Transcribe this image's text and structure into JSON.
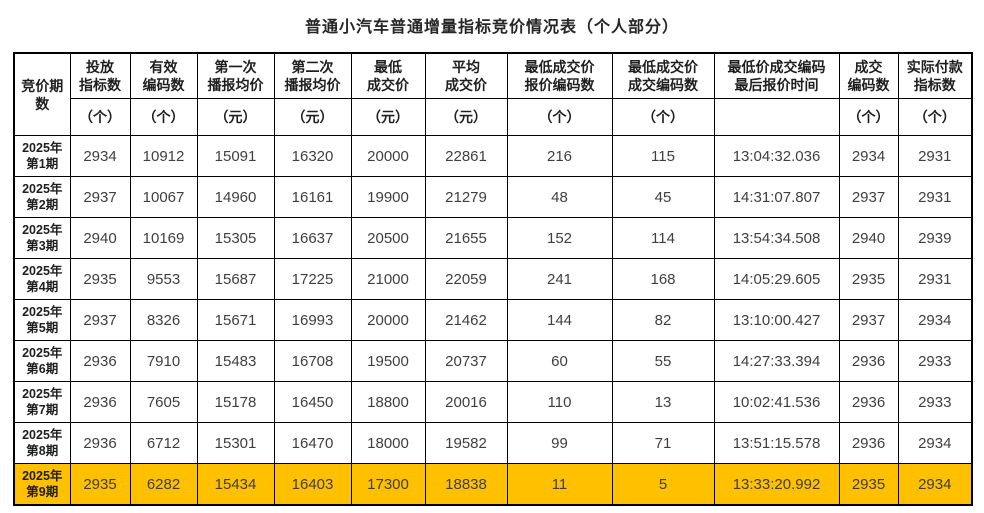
{
  "title": "普通小汽车普通增量指标竞价情况表（个人部分）",
  "colors": {
    "highlight_row": "#FFC000",
    "border": "#000000",
    "data_text": "#3F3F3F",
    "header_text": "#1F1F1F"
  },
  "chart_data": {
    "type": "table",
    "title": "普通小汽车普通增量指标竞价情况表（个人部分）",
    "period_header": "竞价期\n数",
    "columns": [
      {
        "name": "投放\n指标数",
        "unit": "（个）"
      },
      {
        "name": "有效\n编码数",
        "unit": "（个）"
      },
      {
        "name": "第一次\n播报均价",
        "unit": "（元）"
      },
      {
        "name": "第二次\n播报均价",
        "unit": "（元）"
      },
      {
        "name": "最低\n成交价",
        "unit": "（元）"
      },
      {
        "name": "平均\n成交价",
        "unit": "（元）"
      },
      {
        "name": "最低成交价\n报价编码数",
        "unit": "（个）"
      },
      {
        "name": "最低成交价\n成交编码数",
        "unit": "（个）"
      },
      {
        "name": "最低价成交编码\n最后报价时间",
        "unit": ""
      },
      {
        "name": "成交\n编码数",
        "unit": "（个）"
      },
      {
        "name": "实际付款\n指标数",
        "unit": "（个）"
      }
    ],
    "rows": [
      {
        "period": "2025年\n第1期",
        "highlight": false,
        "values": [
          "2934",
          "10912",
          "15091",
          "16320",
          "20000",
          "22861",
          "216",
          "115",
          "13:04:32.036",
          "2934",
          "2931"
        ]
      },
      {
        "period": "2025年\n第2期",
        "highlight": false,
        "values": [
          "2937",
          "10067",
          "14960",
          "16161",
          "19900",
          "21279",
          "48",
          "45",
          "14:31:07.807",
          "2937",
          "2931"
        ]
      },
      {
        "period": "2025年\n第3期",
        "highlight": false,
        "values": [
          "2940",
          "10169",
          "15305",
          "16637",
          "20500",
          "21655",
          "152",
          "114",
          "13:54:34.508",
          "2940",
          "2939"
        ]
      },
      {
        "period": "2025年\n第4期",
        "highlight": false,
        "values": [
          "2935",
          "9553",
          "15687",
          "17225",
          "21000",
          "22059",
          "241",
          "168",
          "14:05:29.605",
          "2935",
          "2931"
        ]
      },
      {
        "period": "2025年\n第5期",
        "highlight": false,
        "values": [
          "2937",
          "8326",
          "15671",
          "16993",
          "20000",
          "21462",
          "144",
          "82",
          "13:10:00.427",
          "2937",
          "2934"
        ]
      },
      {
        "period": "2025年\n第6期",
        "highlight": false,
        "values": [
          "2936",
          "7910",
          "15483",
          "16708",
          "19500",
          "20737",
          "60",
          "55",
          "14:27:33.394",
          "2936",
          "2933"
        ]
      },
      {
        "period": "2025年\n第7期",
        "highlight": false,
        "values": [
          "2936",
          "7605",
          "15178",
          "16450",
          "18800",
          "20016",
          "110",
          "13",
          "10:02:41.536",
          "2936",
          "2933"
        ]
      },
      {
        "period": "2025年\n第8期",
        "highlight": false,
        "values": [
          "2936",
          "6712",
          "15301",
          "16470",
          "18000",
          "19582",
          "99",
          "71",
          "13:51:15.578",
          "2936",
          "2934"
        ]
      },
      {
        "period": "2025年\n第9期",
        "highlight": true,
        "values": [
          "2935",
          "6282",
          "15434",
          "16403",
          "17300",
          "18838",
          "11",
          "5",
          "13:33:20.992",
          "2935",
          "2934"
        ]
      }
    ]
  }
}
